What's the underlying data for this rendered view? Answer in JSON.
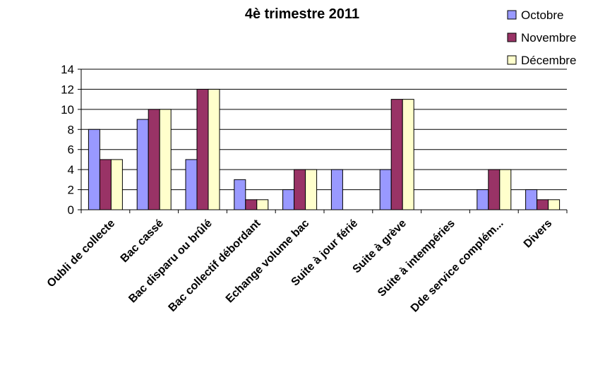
{
  "chart_data": {
    "type": "bar",
    "title": "4è trimestre 2011",
    "xlabel": "",
    "ylabel": "",
    "ylim": [
      0,
      14
    ],
    "yticks": [
      0,
      2,
      4,
      6,
      8,
      10,
      12,
      14
    ],
    "grid": true,
    "legend_position": "top-right",
    "categories": [
      "Oubli de collecte",
      "Bac cassé",
      "Bac disparu ou brûlé",
      "Bac collectif débordant",
      "Echange volume bac",
      "Suite à jour férié",
      "Suite à grève",
      "Suite à intempéries",
      "Dde service complém...",
      "Divers"
    ],
    "series": [
      {
        "name": "Octobre",
        "color": "#9999ff",
        "values": [
          8,
          9,
          5,
          3,
          2,
          4,
          4,
          0,
          2,
          2
        ]
      },
      {
        "name": "Novembre",
        "color": "#993366",
        "values": [
          5,
          10,
          12,
          1,
          4,
          0,
          11,
          0,
          4,
          1
        ]
      },
      {
        "name": "Décembre",
        "color": "#ffffcc",
        "values": [
          5,
          10,
          12,
          1,
          4,
          0,
          11,
          0,
          4,
          1
        ]
      }
    ]
  }
}
